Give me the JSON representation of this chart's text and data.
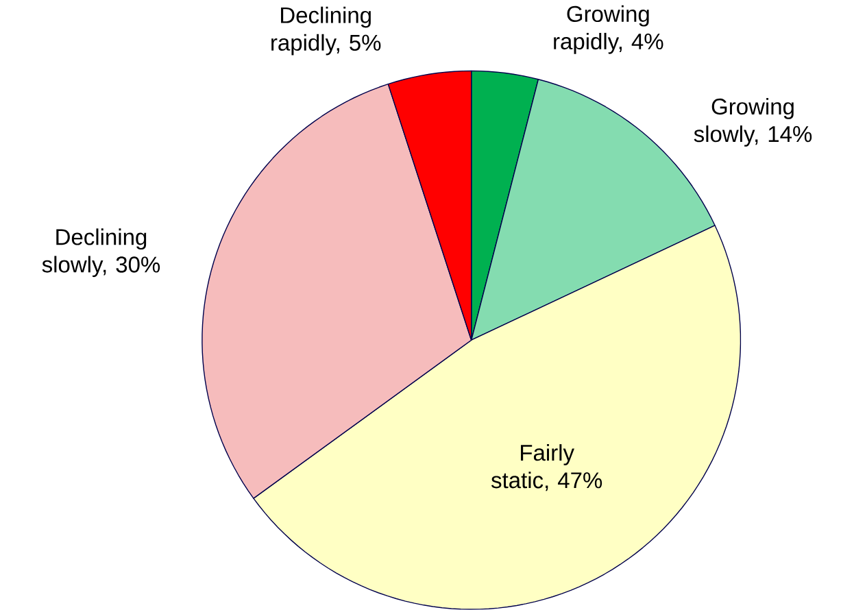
{
  "chart_data": {
    "type": "pie",
    "categories": [
      "Growing rapidly, 4%",
      "Growing slowly, 14%",
      "Fairly static, 47%",
      "Declining slowly, 30%",
      "Declining rapidly, 5%"
    ],
    "values": [
      4,
      14,
      47,
      30,
      5
    ],
    "colors": [
      "#00b050",
      "#84dcb0",
      "#ffffc4",
      "#f6bcbc",
      "#ff0000"
    ]
  }
}
